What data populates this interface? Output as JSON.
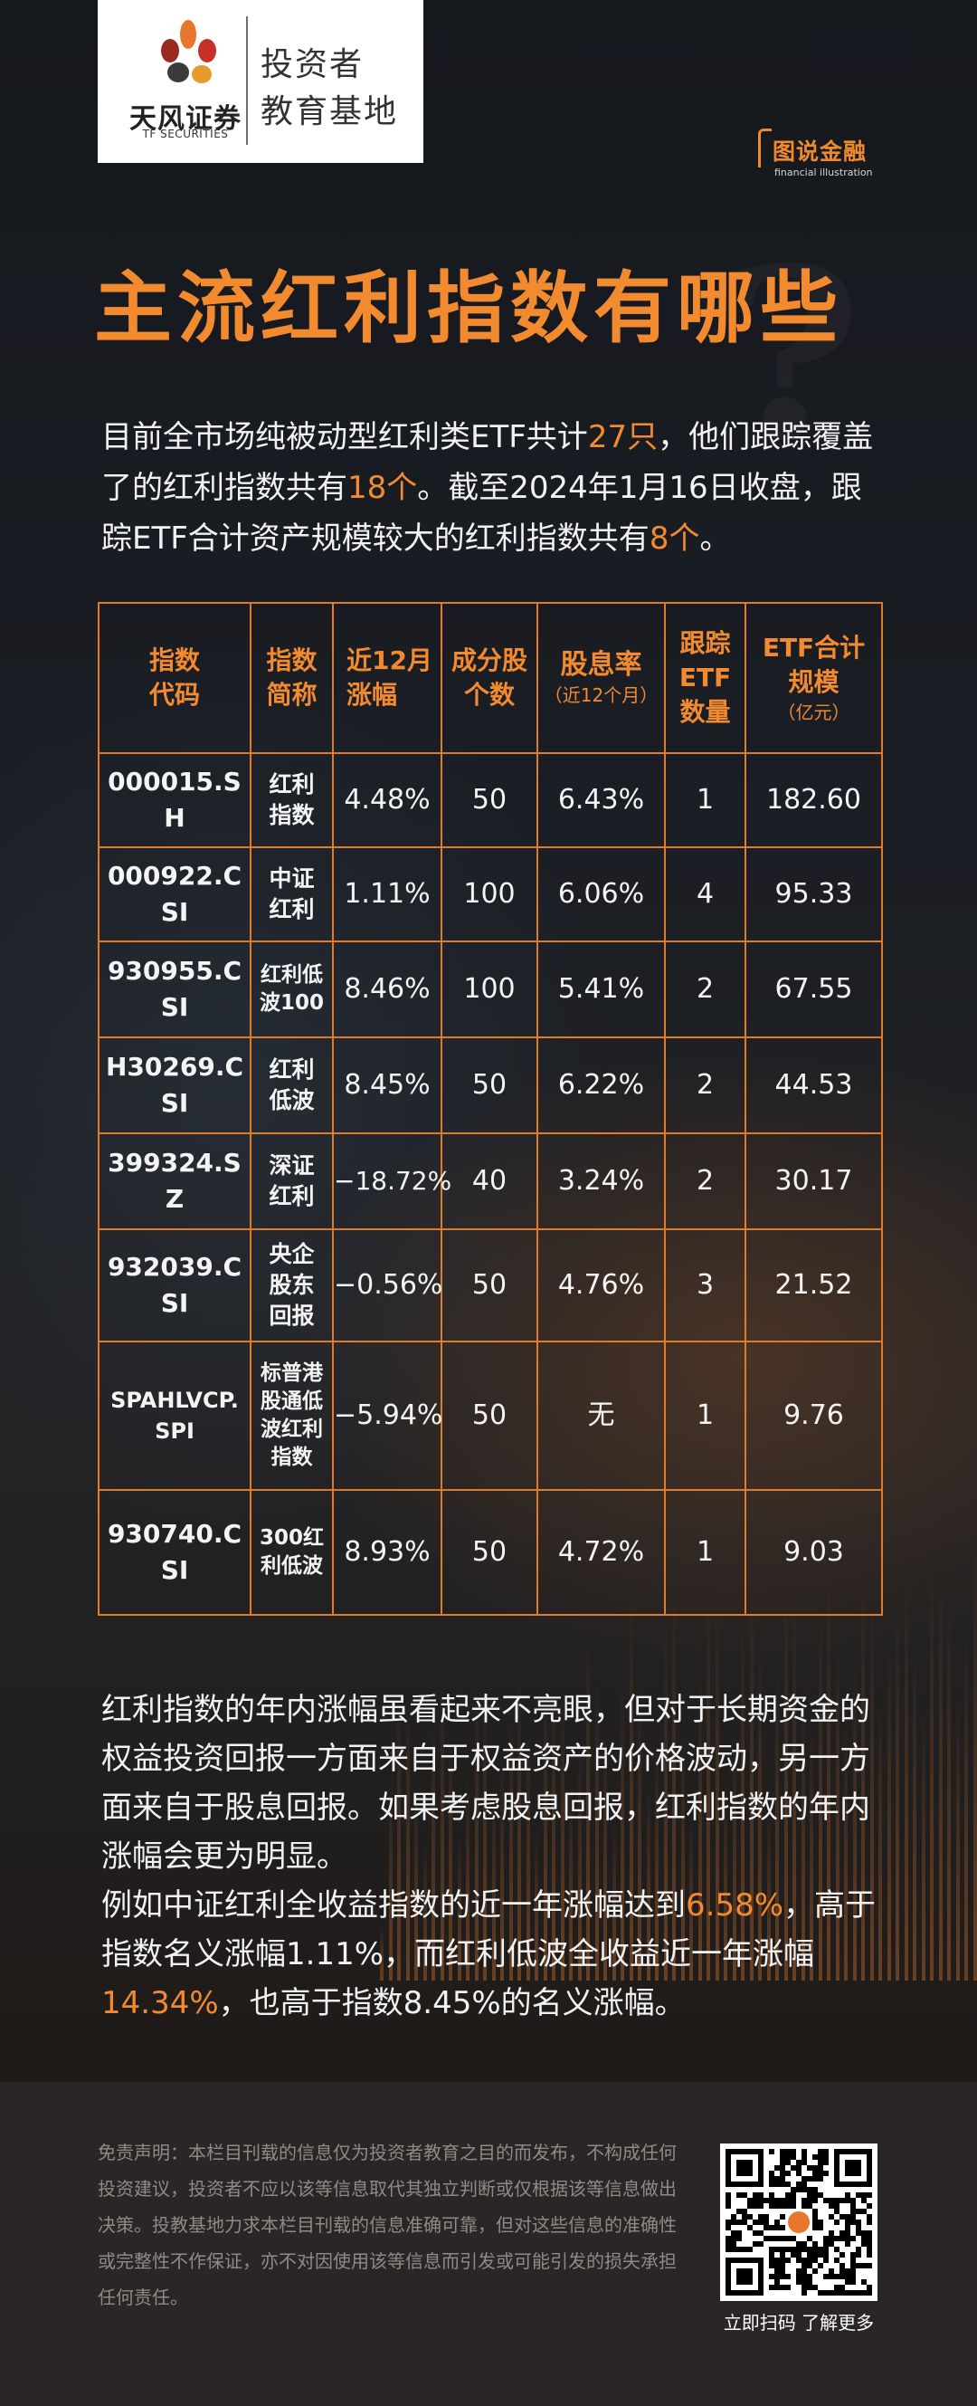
{
  "logo": {
    "brand_cn": "天风证券",
    "brand_en": "TF SECURITIES",
    "subtitle_line1": "投资者",
    "subtitle_line2": "教育基地"
  },
  "badge": {
    "title": "图说金融",
    "subtitle": "financial illustration"
  },
  "title": "主流红利指数有哪些",
  "intro": {
    "p1": "目前全市场纯被动型红利类ETF共计",
    "n1": "27只",
    "p2": "，他们跟踪覆盖了的红利指数共有",
    "n2": "18个",
    "p3": "。截至2024年1月16日收盘，跟踪ETF合计资产规模较大的红利指数共有",
    "n3": "8个",
    "p4": "。"
  },
  "table": {
    "headers": {
      "code": "指数代码",
      "name": "指数简称",
      "change": "近12月涨幅",
      "constituents": "成分股个数",
      "yield_main": "股息率",
      "yield_sub": "（近12个月）",
      "etf_count": "跟踪ETF数量",
      "scale_main": "ETF合计规模",
      "scale_sub": "（亿元）"
    },
    "rows": [
      {
        "code": "000015.SH",
        "name": "红利指数",
        "change": "4.48%",
        "constituents": "50",
        "yield": "6.43%",
        "etf_count": "1",
        "scale": "182.60"
      },
      {
        "code": "000922.CSI",
        "name": "中证红利",
        "change": "1.11%",
        "constituents": "100",
        "yield": "6.06%",
        "etf_count": "4",
        "scale": "95.33"
      },
      {
        "code": "930955.CSI",
        "name": "红利低波100",
        "change": "8.46%",
        "constituents": "100",
        "yield": "5.41%",
        "etf_count": "2",
        "scale": "67.55"
      },
      {
        "code": "H30269.CSI",
        "name": "红利低波",
        "change": "8.45%",
        "constituents": "50",
        "yield": "6.22%",
        "etf_count": "2",
        "scale": "44.53"
      },
      {
        "code": "399324.SZ",
        "name": "深证红利",
        "change": "−18.72%",
        "constituents": "40",
        "yield": "3.24%",
        "etf_count": "2",
        "scale": "30.17"
      },
      {
        "code": "932039.CSI",
        "name": "央企股东回报",
        "change": "−0.56%",
        "constituents": "50",
        "yield": "4.76%",
        "etf_count": "3",
        "scale": "21.52"
      },
      {
        "code": "SPAHLVCP.SPI",
        "name": "标普港股通低波红利指数",
        "change": "−5.94%",
        "constituents": "50",
        "yield": "无",
        "etf_count": "1",
        "scale": "9.76"
      },
      {
        "code": "930740.CSI",
        "name": "300红利低波",
        "change": "8.93%",
        "constituents": "50",
        "yield": "4.72%",
        "etf_count": "1",
        "scale": "9.03"
      }
    ]
  },
  "body": {
    "para1": "红利指数的年内涨幅虽看起来不亮眼，但对于长期资金的权益投资回报一方面来自于权益资产的价格波动，另一方面来自于股息回报。如果考虑股息回报，红利指数的年内涨幅会更为明显。",
    "p2a": "例如中证红利全收益指数的近一年涨幅达到",
    "p2b": "6.58%",
    "p2c": "，高于指数名义涨幅1.11%，而红利低波全收益近一年涨幅",
    "p2d": "14.34%",
    "p2e": "，也高于指数8.45%的名义涨幅。"
  },
  "footer": {
    "disclaimer": "免责声明：本栏目刊载的信息仅为投资者教育之目的而发布，不构成任何投资建议，投资者不应以该等信息取代其独立判断或仅根据该等信息做出决策。投教基地力求本栏目刊载的信息准确可靠，但对这些信息的准确性或完整性不作保证，亦不对因使用该等信息而引发或可能引发的损失承担任何责任。",
    "qr_label": "立即扫码 了解更多"
  },
  "colors": {
    "accent": "#f28a30",
    "background": "#1b1e24",
    "footer": "#2a2625"
  }
}
